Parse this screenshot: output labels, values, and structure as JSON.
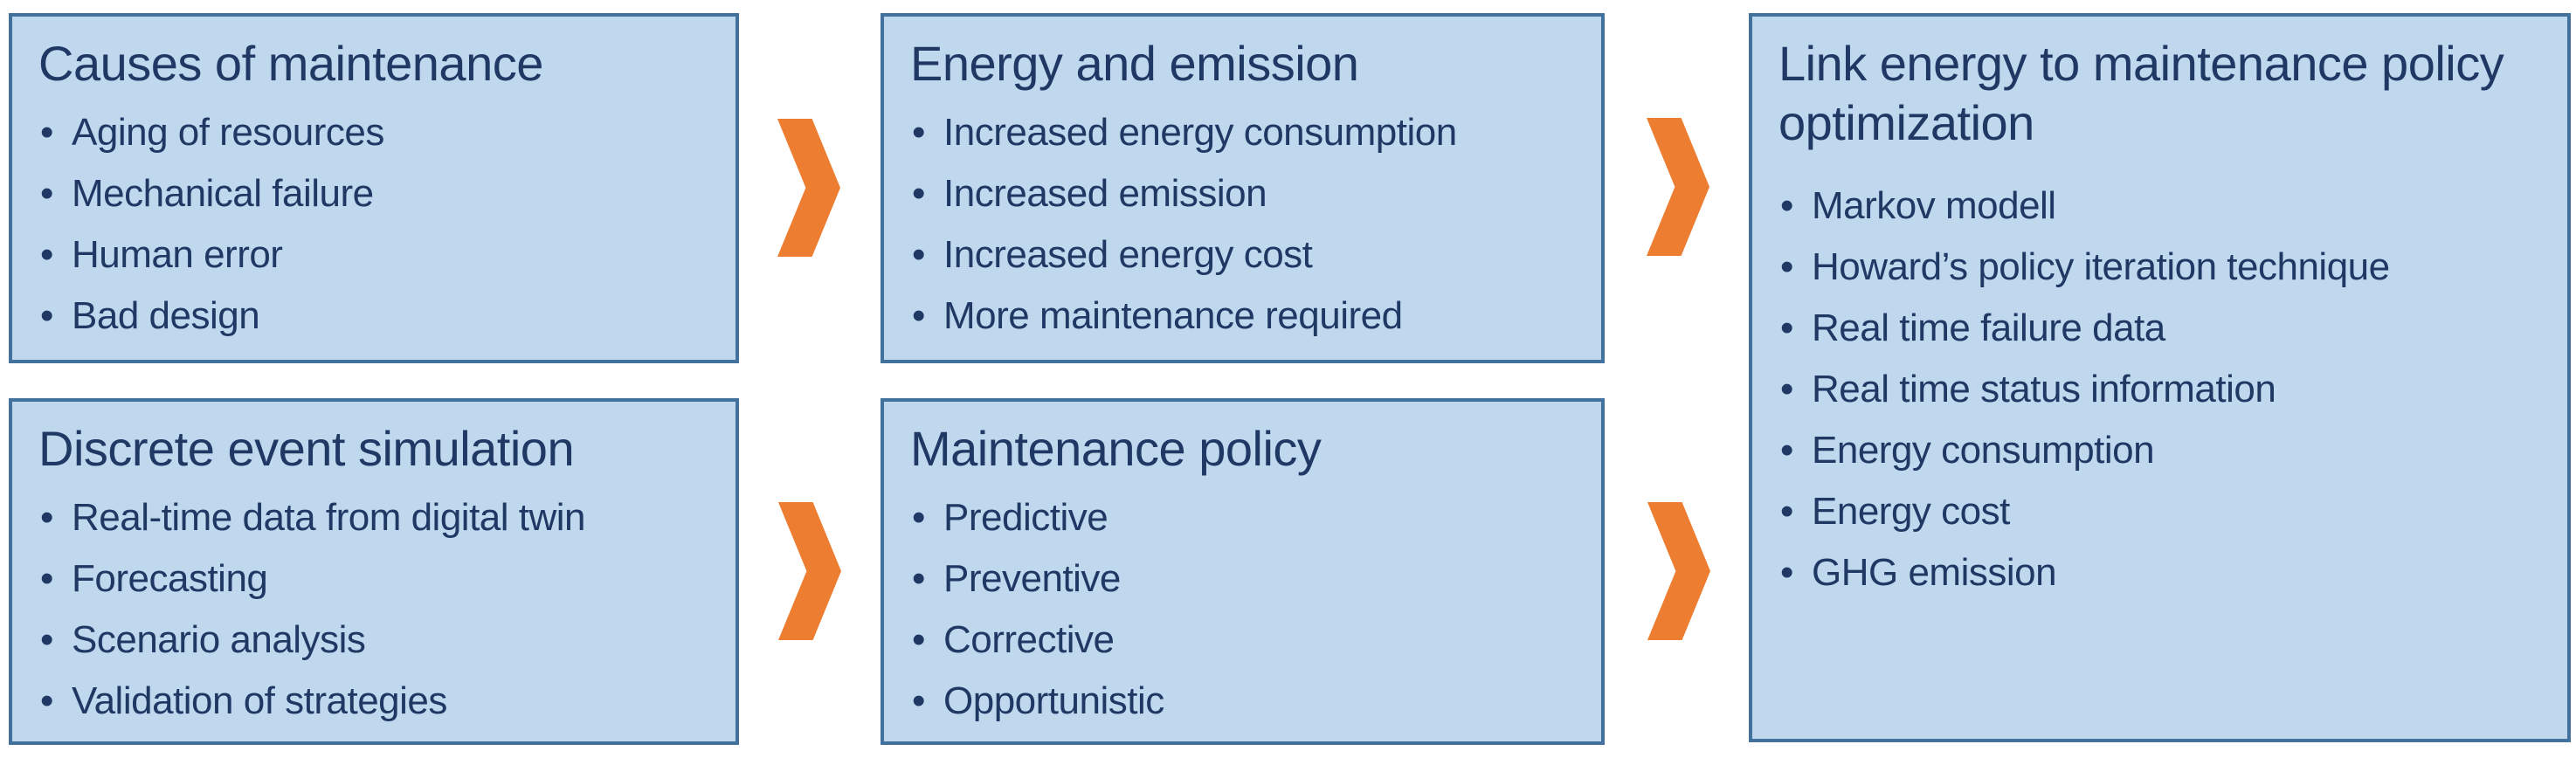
{
  "colors": {
    "background": "#ffffff",
    "box_fill": "#BFD8EE",
    "box_border": "#41719C",
    "text": "#1F3864",
    "arrow": "#ED7D31"
  },
  "boxes": {
    "causes": {
      "title": "Causes of maintenance",
      "bullets": [
        "Aging of resources",
        "Mechanical failure",
        "Human error",
        "Bad design"
      ]
    },
    "energy": {
      "title": "Energy and emission",
      "bullets": [
        "Increased energy consumption",
        "Increased emission",
        "Increased energy cost",
        "More maintenance required"
      ]
    },
    "simulation": {
      "title": "Discrete event simulation",
      "bullets": [
        "Real-time data from digital twin",
        "Forecasting",
        "Scenario analysis",
        "Validation of strategies"
      ]
    },
    "policy": {
      "title": "Maintenance policy",
      "bullets": [
        "Predictive",
        "Preventive",
        "Corrective",
        "Opportunistic"
      ]
    },
    "optimization": {
      "title": "Link energy to maintenance policy optimization",
      "bullets": [
        "Markov modell",
        "Howard’s policy iteration technique",
        "Real time failure data",
        "Real time status information",
        "Energy consumption",
        "Energy cost",
        "GHG emission"
      ]
    }
  },
  "arrows": [
    {
      "icon": "chevron-right-icon",
      "from": "causes",
      "to": "energy"
    },
    {
      "icon": "chevron-right-icon",
      "from": "energy",
      "to": "optimization"
    },
    {
      "icon": "chevron-right-icon",
      "from": "simulation",
      "to": "policy"
    },
    {
      "icon": "chevron-right-icon",
      "from": "policy",
      "to": "optimization"
    }
  ]
}
